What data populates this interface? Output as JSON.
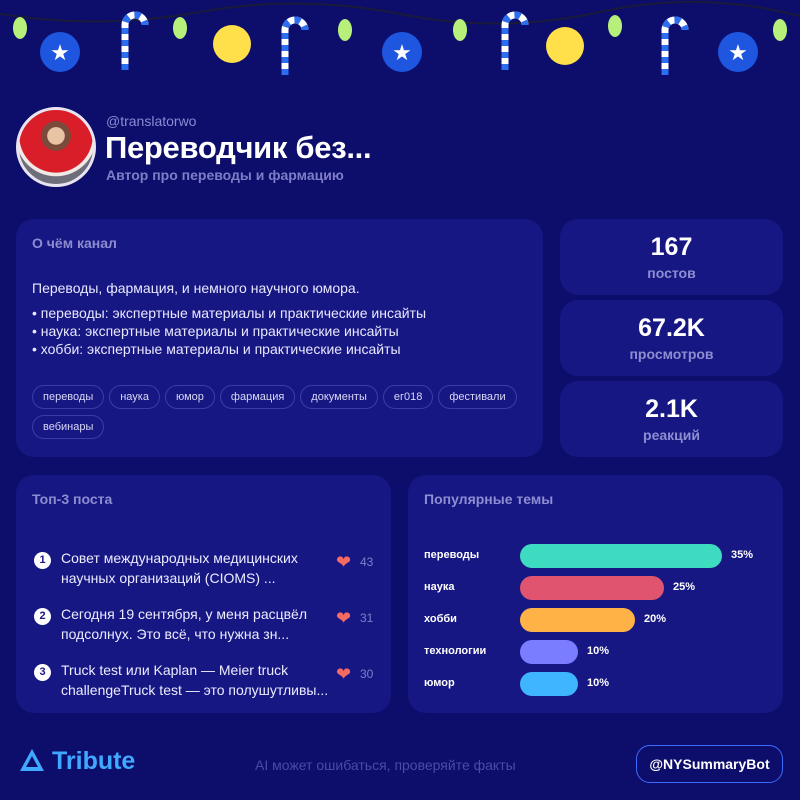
{
  "header": {
    "handle": "@translatorwo",
    "title": "Переводчик без...",
    "subtitle": "Автор про переводы и фармацию"
  },
  "about": {
    "heading": "О чём канал",
    "lead": "Переводы, фармация, и немного научного юмора.",
    "bullets": [
      "• переводы: экспертные материалы и практические инсайты",
      "• наука: экспертные материалы и практические инсайты",
      "• хобби: экспертные материалы и практические инсайты"
    ],
    "tags": [
      "переводы",
      "наука",
      "юмор",
      "фармация",
      "документы",
      "ег018",
      "фестивали",
      "вебинары"
    ]
  },
  "stats": [
    {
      "value": "167",
      "label": "постов"
    },
    {
      "value": "67.2K",
      "label": "просмотров"
    },
    {
      "value": "2.1K",
      "label": "реакций"
    }
  ],
  "top_posts": {
    "heading": "Топ-3 поста",
    "items": [
      {
        "rank": "1",
        "text": "Совет международных медицинских научных организаций (СIOMS) ...",
        "likes": "43"
      },
      {
        "rank": "2",
        "text": "Сегодня 19 сентября, у меня расцвёл подсолнух. Это всё, что нужна зн...",
        "likes": "31"
      },
      {
        "rank": "3",
        "text": "Truck test или Kaplan — Meier truck challengeTruck test — это полушутливы...",
        "likes": "30"
      }
    ]
  },
  "topics": {
    "heading": "Популярные темы",
    "items": [
      {
        "label": "переводы",
        "value": 35,
        "pct": "35%",
        "color": "#3ddbc0"
      },
      {
        "label": "наука",
        "value": 25,
        "pct": "25%",
        "color": "#e0546f"
      },
      {
        "label": "хобби",
        "value": 20,
        "pct": "20%",
        "color": "#ffb347"
      },
      {
        "label": "технологии",
        "value": 10,
        "pct": "10%",
        "color": "#7a7dff"
      },
      {
        "label": "юмор",
        "value": 10,
        "pct": "10%",
        "color": "#3fb4ff"
      }
    ]
  },
  "footer": {
    "logo": "Tribute",
    "disclaimer": "AI может ошибаться, проверяйте факты",
    "bot": "@NYSummaryBot"
  }
}
